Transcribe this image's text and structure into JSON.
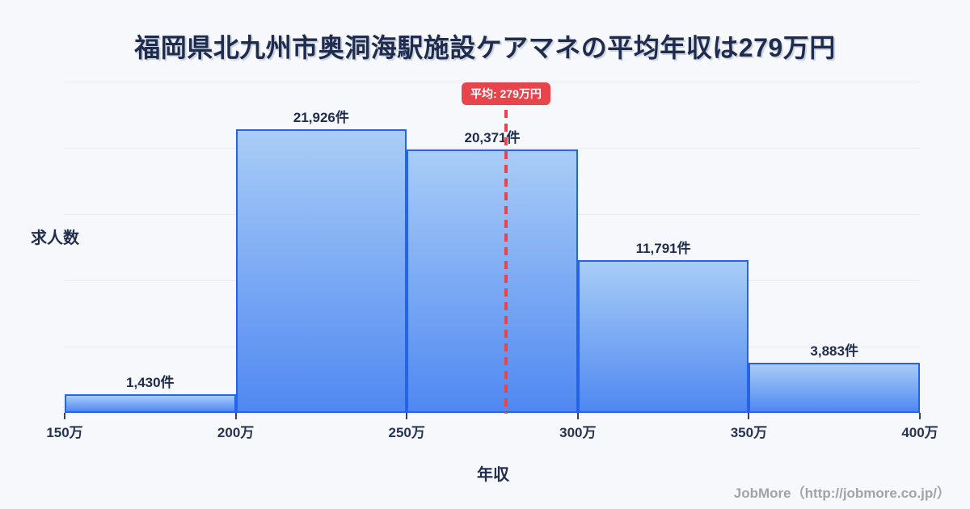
{
  "title": "福岡県北九州市奥洞海駅施設ケアマネの平均年収は279万円",
  "chart_data": {
    "type": "bar",
    "subtype": "histogram",
    "title": "福岡県北九州市奥洞海駅施設ケアマネの平均年収は279万円",
    "xlabel": "年収",
    "ylabel": "求人数",
    "categories": [
      "150万-200万",
      "200万-250万",
      "250万-300万",
      "300万-350万",
      "350万-400万"
    ],
    "values": [
      1430,
      21926,
      20371,
      11791,
      3883
    ],
    "bar_labels": [
      "1,430件",
      "21,926件",
      "20,371件",
      "11,791件",
      "3,883件"
    ],
    "x_ticks": [
      {
        "value": 150,
        "label": "150万"
      },
      {
        "value": 200,
        "label": "200万"
      },
      {
        "value": 250,
        "label": "250万"
      },
      {
        "value": 300,
        "label": "300万"
      },
      {
        "value": 350,
        "label": "350万"
      },
      {
        "value": 400,
        "label": "400万"
      }
    ],
    "x_range": [
      150,
      400
    ],
    "bin_width_man_yen": 50,
    "ylim": [
      0,
      25600
    ],
    "grid": "horizontal",
    "gridline_count": 5,
    "legend": false,
    "average": {
      "value": 279,
      "label": "平均: 279万円"
    }
  },
  "footer": {
    "credit": "JobMore（http://jobmore.co.jp/）"
  },
  "colors": {
    "background": "#f7f8fb",
    "accent_red": "#e8444b",
    "bar_gradient_top": "#a9cdf7",
    "bar_gradient_bottom": "#4f88f1",
    "bar_border": "#2563eb",
    "gridline": "#e8ebf2",
    "text_dark": "#1f2c4e",
    "footer_gray": "#a2a3aa"
  }
}
